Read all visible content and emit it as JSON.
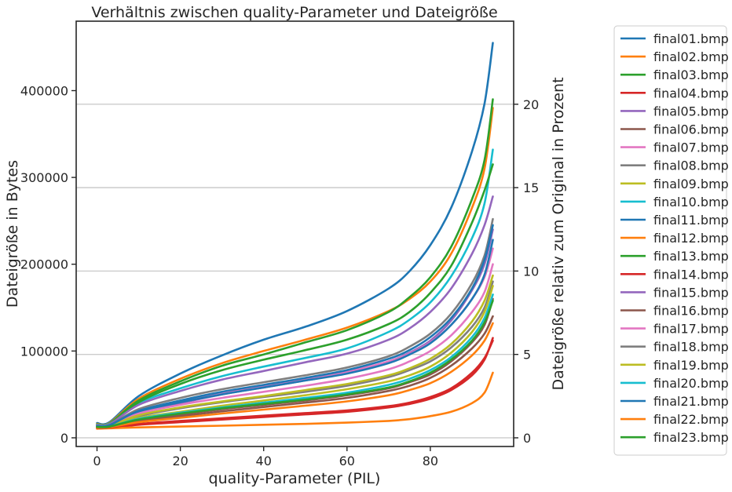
{
  "chart_data": {
    "type": "line",
    "title": "Verhältnis zwischen quality-Parameter und Dateigröße",
    "xlabel": "quality-Parameter (PIL)",
    "ylabel": "Dateigröße in Bytes",
    "y2label": "Dateigröße relativ zum Original in Prozent",
    "xlim": [
      -5,
      100
    ],
    "ylim": [
      -10000,
      480000
    ],
    "y2lim": [
      -0.52,
      24.98
    ],
    "xticks": [
      0,
      20,
      40,
      60,
      80
    ],
    "yticks": [
      0,
      100000,
      200000,
      300000,
      400000
    ],
    "y2ticks": [
      0,
      5,
      10,
      15,
      20
    ],
    "grid": "horizontal lines at right-axis ticks",
    "legend_position": "outside-right",
    "x_samples": [
      0,
      3,
      10,
      20,
      30,
      40,
      50,
      60,
      70,
      75,
      80,
      85,
      90,
      93,
      95
    ],
    "series": [
      {
        "name": "final01.bmp",
        "color": "#1f77b4",
        "values": [
          17000,
          18000,
          48000,
          74000,
          95000,
          113000,
          128000,
          146000,
          172000,
          192000,
          222000,
          265000,
          330000,
          385000,
          455000
        ]
      },
      {
        "name": "final02.bmp",
        "color": "#ff7f0e",
        "values": [
          16000,
          17000,
          45000,
          68000,
          86000,
          100000,
          113000,
          127000,
          146000,
          160000,
          180000,
          212000,
          265000,
          310000,
          380000
        ]
      },
      {
        "name": "final03.bmp",
        "color": "#2ca02c",
        "values": [
          15500,
          16500,
          43000,
          65000,
          83000,
          96000,
          110000,
          124000,
          145000,
          162000,
          185000,
          220000,
          275000,
          320000,
          390000
        ]
      },
      {
        "name": "final04.bmp",
        "color": "#d62728",
        "values": [
          11000,
          11500,
          15000,
          18000,
          21000,
          24000,
          27000,
          30000,
          35000,
          39000,
          45000,
          55000,
          72000,
          90000,
          115000
        ]
      },
      {
        "name": "final05.bmp",
        "color": "#9467bd",
        "values": [
          14000,
          15000,
          30000,
          40000,
          50000,
          58000,
          66000,
          75000,
          88000,
          98000,
          112000,
          135000,
          170000,
          200000,
          240000
        ]
      },
      {
        "name": "final06.bmp",
        "color": "#8c564b",
        "values": [
          12500,
          13000,
          20000,
          27000,
          33000,
          38000,
          43000,
          49000,
          57000,
          64000,
          73000,
          88000,
          110000,
          130000,
          160000
        ]
      },
      {
        "name": "final07.bmp",
        "color": "#e377c2",
        "values": [
          13000,
          14000,
          30000,
          42000,
          51000,
          59000,
          67000,
          76000,
          88000,
          97000,
          110000,
          130000,
          160000,
          185000,
          218000
        ]
      },
      {
        "name": "final08.bmp",
        "color": "#7f7f7f",
        "values": [
          13000,
          13500,
          25000,
          34000,
          41000,
          47000,
          53000,
          60000,
          70000,
          78000,
          88000,
          104000,
          128000,
          150000,
          180000
        ]
      },
      {
        "name": "final09.bmp",
        "color": "#bcbd22",
        "values": [
          12500,
          13000,
          23000,
          30000,
          37000,
          43000,
          49000,
          56000,
          65000,
          72000,
          82000,
          98000,
          122000,
          145000,
          175000
        ]
      },
      {
        "name": "final10.bmp",
        "color": "#17becf",
        "values": [
          15000,
          16000,
          40000,
          57000,
          71000,
          82000,
          92000,
          103000,
          122000,
          136000,
          156000,
          186000,
          230000,
          270000,
          332000
        ]
      },
      {
        "name": "final11.bmp",
        "color": "#1f77b4",
        "values": [
          13500,
          14500,
          30000,
          41000,
          50000,
          58000,
          66000,
          74000,
          86000,
          96000,
          109000,
          130000,
          160000,
          188000,
          228000
        ]
      },
      {
        "name": "final12.bmp",
        "color": "#ff7f0e",
        "values": [
          10500,
          11000,
          12000,
          13000,
          14000,
          15000,
          16000,
          17500,
          19500,
          21500,
          25000,
          30000,
          40000,
          52000,
          75000
        ]
      },
      {
        "name": "final13.bmp",
        "color": "#2ca02c",
        "values": [
          14500,
          15500,
          41000,
          62000,
          78000,
          90000,
          101000,
          113000,
          131000,
          145000,
          167000,
          198000,
          248000,
          285000,
          315000
        ]
      },
      {
        "name": "final14.bmp",
        "color": "#d62728",
        "values": [
          11500,
          12000,
          16000,
          19500,
          22500,
          25500,
          28500,
          31500,
          36500,
          40500,
          47000,
          57000,
          75000,
          92000,
          112000
        ]
      },
      {
        "name": "final15.bmp",
        "color": "#9467bd",
        "values": [
          14500,
          15500,
          38000,
          54000,
          67000,
          77000,
          87000,
          97000,
          113000,
          126000,
          145000,
          172000,
          212000,
          245000,
          278000
        ]
      },
      {
        "name": "final16.bmp",
        "color": "#8c564b",
        "values": [
          12000,
          12500,
          19000,
          25000,
          30500,
          35500,
          40500,
          46000,
          54000,
          60000,
          69000,
          83000,
          103000,
          120000,
          140000
        ]
      },
      {
        "name": "final17.bmp",
        "color": "#e377c2",
        "values": [
          13000,
          14000,
          28000,
          38000,
          46000,
          53000,
          60000,
          68000,
          79000,
          88000,
          100000,
          118000,
          145000,
          168000,
          200000
        ]
      },
      {
        "name": "final18.bmp",
        "color": "#7f7f7f",
        "values": [
          13500,
          14500,
          33000,
          46000,
          56000,
          64000,
          72000,
          81000,
          94000,
          105000,
          120000,
          143000,
          178000,
          210000,
          252000
        ]
      },
      {
        "name": "final19.bmp",
        "color": "#bcbd22",
        "values": [
          13000,
          13500,
          26000,
          35000,
          42000,
          48000,
          55000,
          62000,
          72000,
          80000,
          91000,
          108000,
          134000,
          158000,
          187000
        ]
      },
      {
        "name": "final20.bmp",
        "color": "#17becf",
        "values": [
          12500,
          13000,
          22000,
          29000,
          35000,
          40500,
          46000,
          52000,
          61000,
          68000,
          78000,
          93000,
          116000,
          138000,
          165000
        ]
      },
      {
        "name": "final21.bmp",
        "color": "#1f77b4",
        "values": [
          13500,
          14500,
          31000,
          43000,
          53000,
          61000,
          69000,
          78000,
          91000,
          101000,
          116000,
          138000,
          172000,
          205000,
          245000
        ]
      },
      {
        "name": "final22.bmp",
        "color": "#ff7f0e",
        "values": [
          12000,
          12500,
          18000,
          23000,
          28000,
          32500,
          37000,
          42000,
          49000,
          55000,
          63000,
          76000,
          95000,
          112000,
          132000
        ]
      },
      {
        "name": "final23.bmp",
        "color": "#2ca02c",
        "values": [
          12500,
          13000,
          21000,
          28000,
          34000,
          39000,
          44000,
          50000,
          58000,
          65000,
          75000,
          90000,
          112000,
          133000,
          158000
        ]
      }
    ]
  }
}
